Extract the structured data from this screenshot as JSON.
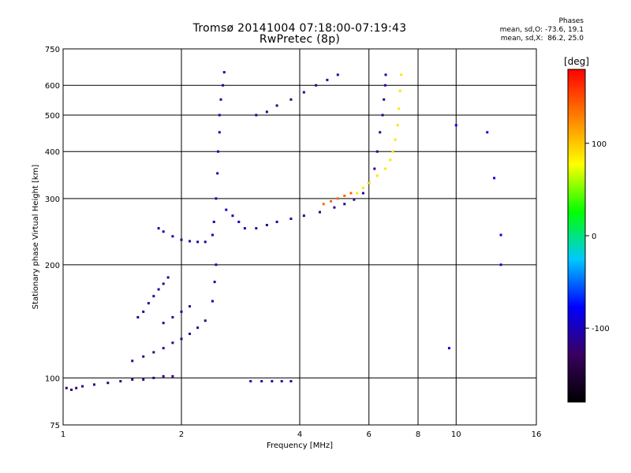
{
  "chart_data": {
    "type": "scatter",
    "title": "Tromsø 20141004 07:18:00-07:19:43",
    "subtitle": "RwPretec (8p)",
    "xlabel": "Frequency [MHz]",
    "ylabel": "Stationary phase Virtual Height [km]",
    "x_scale": "log",
    "y_scale": "log",
    "xlim": [
      1,
      16
    ],
    "ylim": [
      75,
      750
    ],
    "x_ticks": [
      1,
      2,
      4,
      6,
      8,
      10,
      16
    ],
    "y_ticks": [
      75,
      100,
      200,
      300,
      400,
      500,
      600,
      750
    ],
    "grid": true,
    "phase_box": {
      "heading": "Phases",
      "line_o": "mean, sd,O: -73.6, 19.1",
      "line_x": "mean, sd,X:  86.2, 25.0"
    },
    "colorbar": {
      "label": "[deg]",
      "ticks": [
        100,
        0,
        -100
      ],
      "range": [
        -180,
        180
      ],
      "colors": [
        "#000000",
        "#3a0060",
        "#0000ff",
        "#00c8ff",
        "#00ff00",
        "#ffff00",
        "#ff8000",
        "#ff0000"
      ]
    },
    "series": [
      {
        "phase": -120,
        "points": [
          [
            1.02,
            94
          ],
          [
            1.05,
            93
          ],
          [
            1.08,
            94
          ],
          [
            1.12,
            95
          ],
          [
            1.2,
            96
          ],
          [
            1.3,
            97
          ],
          [
            1.4,
            98
          ],
          [
            1.5,
            99
          ],
          [
            1.6,
            99
          ],
          [
            1.7,
            100
          ],
          [
            1.8,
            101
          ],
          [
            1.9,
            101
          ]
        ]
      },
      {
        "phase": -118,
        "points": [
          [
            1.5,
            111
          ],
          [
            1.6,
            114
          ],
          [
            1.7,
            117
          ],
          [
            1.8,
            120
          ],
          [
            1.9,
            124
          ],
          [
            2.0,
            127
          ],
          [
            2.1,
            131
          ],
          [
            2.2,
            136
          ],
          [
            2.3,
            142
          ]
        ]
      },
      {
        "phase": -112,
        "points": [
          [
            1.55,
            145
          ],
          [
            1.6,
            150
          ],
          [
            1.65,
            158
          ],
          [
            1.7,
            165
          ],
          [
            1.75,
            172
          ],
          [
            1.8,
            178
          ],
          [
            1.85,
            185
          ]
        ]
      },
      {
        "phase": -110,
        "points": [
          [
            1.8,
            140
          ],
          [
            1.9,
            145
          ],
          [
            2.0,
            150
          ],
          [
            2.1,
            155
          ]
        ]
      },
      {
        "phase": -108,
        "points": [
          [
            1.75,
            250
          ],
          [
            1.8,
            245
          ],
          [
            1.9,
            238
          ],
          [
            2.0,
            233
          ],
          [
            2.1,
            231
          ],
          [
            2.2,
            230
          ],
          [
            2.3,
            230
          ]
        ]
      },
      {
        "phase": -105,
        "points": [
          [
            2.4,
            240
          ],
          [
            2.42,
            260
          ],
          [
            2.45,
            300
          ],
          [
            2.47,
            350
          ],
          [
            2.48,
            400
          ],
          [
            2.5,
            450
          ],
          [
            2.5,
            500
          ],
          [
            2.52,
            550
          ],
          [
            2.55,
            600
          ],
          [
            2.57,
            650
          ],
          [
            2.45,
            200
          ],
          [
            2.43,
            180
          ],
          [
            2.4,
            160
          ]
        ]
      },
      {
        "phase": -100,
        "points": [
          [
            2.6,
            280
          ],
          [
            2.7,
            270
          ],
          [
            2.8,
            260
          ],
          [
            2.9,
            250
          ]
        ]
      },
      {
        "phase": -108,
        "points": [
          [
            3.0,
            98
          ],
          [
            3.2,
            98
          ],
          [
            3.4,
            98
          ],
          [
            3.6,
            98
          ],
          [
            3.8,
            98
          ]
        ]
      },
      {
        "phase": -115,
        "points": [
          [
            3.1,
            250
          ],
          [
            3.3,
            255
          ],
          [
            3.5,
            260
          ],
          [
            3.8,
            265
          ],
          [
            4.1,
            270
          ],
          [
            4.5,
            276
          ],
          [
            4.9,
            284
          ],
          [
            5.2,
            290
          ],
          [
            5.5,
            298
          ],
          [
            5.8,
            310
          ],
          [
            6.0,
            330
          ],
          [
            6.2,
            360
          ],
          [
            6.3,
            400
          ],
          [
            6.4,
            450
          ],
          [
            6.5,
            500
          ],
          [
            6.55,
            550
          ],
          [
            6.6,
            600
          ],
          [
            6.62,
            640
          ]
        ]
      },
      {
        "phase": -120,
        "points": [
          [
            3.1,
            500
          ],
          [
            3.3,
            510
          ],
          [
            3.5,
            530
          ],
          [
            3.8,
            550
          ],
          [
            4.1,
            575
          ],
          [
            4.4,
            600
          ],
          [
            4.7,
            620
          ],
          [
            5.0,
            640
          ]
        ]
      },
      {
        "phase": 140,
        "points": [
          [
            4.6,
            290
          ],
          [
            4.8,
            295
          ],
          [
            5.0,
            300
          ],
          [
            5.2,
            305
          ],
          [
            5.4,
            310
          ]
        ]
      },
      {
        "phase": 88,
        "points": [
          [
            5.6,
            310
          ],
          [
            5.8,
            320
          ],
          [
            6.0,
            330
          ],
          [
            6.3,
            345
          ],
          [
            6.6,
            360
          ],
          [
            6.8,
            380
          ],
          [
            6.9,
            400
          ],
          [
            7.0,
            430
          ],
          [
            7.1,
            470
          ],
          [
            7.15,
            520
          ],
          [
            7.2,
            580
          ],
          [
            7.25,
            640
          ]
        ]
      },
      {
        "phase": -90,
        "points": [
          [
            9.6,
            120
          ],
          [
            10.0,
            470
          ],
          [
            12.0,
            450
          ],
          [
            12.5,
            340
          ],
          [
            13.0,
            240
          ],
          [
            13.0,
            200
          ]
        ]
      }
    ]
  }
}
